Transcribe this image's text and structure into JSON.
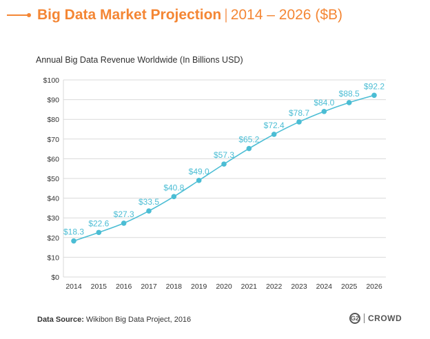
{
  "header": {
    "title_main": "Big Data Market Projection",
    "title_separator": "|",
    "title_sub": "2014 – 2026 ($B)",
    "accent_color": "#f48634"
  },
  "chart_data": {
    "type": "line",
    "title": "Annual Big Data Revenue Worldwide (In Billions USD)",
    "x": [
      "2014",
      "2015",
      "2016",
      "2017",
      "2018",
      "2019",
      "2020",
      "2021",
      "2022",
      "2023",
      "2024",
      "2025",
      "2026"
    ],
    "series": [
      {
        "values": [
          18.3,
          22.6,
          27.3,
          33.5,
          40.8,
          49.0,
          57.3,
          65.2,
          72.4,
          78.7,
          84.0,
          88.5,
          92.2
        ],
        "labels": [
          "$18.3",
          "$22.6",
          "$27.3",
          "$33.5",
          "$40.8",
          "$49.0",
          "$57.3",
          "$65.2",
          "$72.4",
          "$78.7",
          "$84.0",
          "$88.5",
          "$92.2"
        ],
        "color": "#4bbdd4"
      }
    ],
    "yticks": [
      "$0",
      "$10",
      "$20",
      "$30",
      "$40",
      "$50",
      "$60",
      "$70",
      "$80",
      "$90",
      "$100"
    ],
    "ylim": [
      0,
      100
    ],
    "grid": true,
    "xlabel": "",
    "ylabel": ""
  },
  "footer": {
    "source_label": "Data Source:",
    "source_text": "Wikibon Big Data Project, 2016",
    "logo_mark": "G2",
    "logo_text": "CROWD"
  }
}
